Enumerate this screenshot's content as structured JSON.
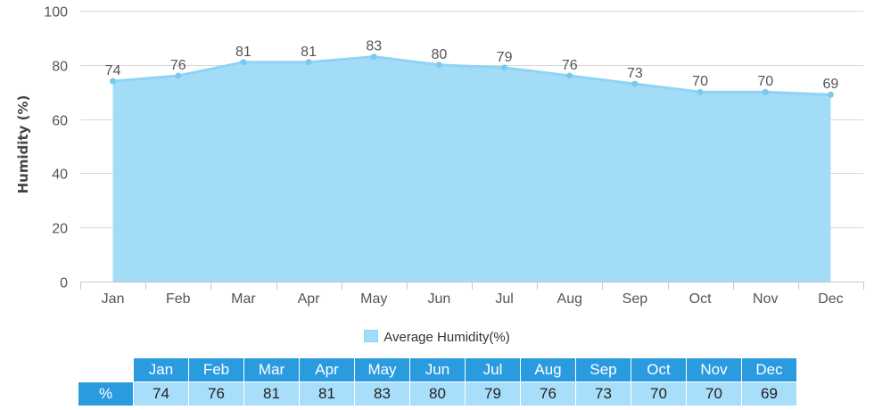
{
  "chart_data": {
    "type": "area",
    "categories": [
      "Jan",
      "Feb",
      "Mar",
      "Apr",
      "May",
      "Jun",
      "Jul",
      "Aug",
      "Sep",
      "Oct",
      "Nov",
      "Dec"
    ],
    "series": [
      {
        "name": "Average Humidity(%)",
        "values": [
          74,
          76,
          81,
          81,
          83,
          80,
          79,
          76,
          73,
          70,
          70,
          69
        ]
      }
    ],
    "ylabel": "Humidity (%)",
    "xlabel": "",
    "ylim": [
      0,
      100
    ],
    "yticks": [
      0,
      20,
      40,
      60,
      80,
      100
    ],
    "grid": true,
    "legend": "bottom",
    "colors": {
      "fill": "#a3dcf7",
      "line": "#8fd3f5",
      "point": "#7cc8ef"
    }
  },
  "table": {
    "row_label": "%",
    "headers": [
      "Jan",
      "Feb",
      "Mar",
      "Apr",
      "May",
      "Jun",
      "Jul",
      "Aug",
      "Sep",
      "Oct",
      "Nov",
      "Dec"
    ],
    "values": [
      "74",
      "76",
      "81",
      "81",
      "83",
      "80",
      "79",
      "76",
      "73",
      "70",
      "70",
      "69"
    ],
    "colors": {
      "header_bg": "#2b9be0",
      "value_bg": "#a9defa"
    }
  }
}
